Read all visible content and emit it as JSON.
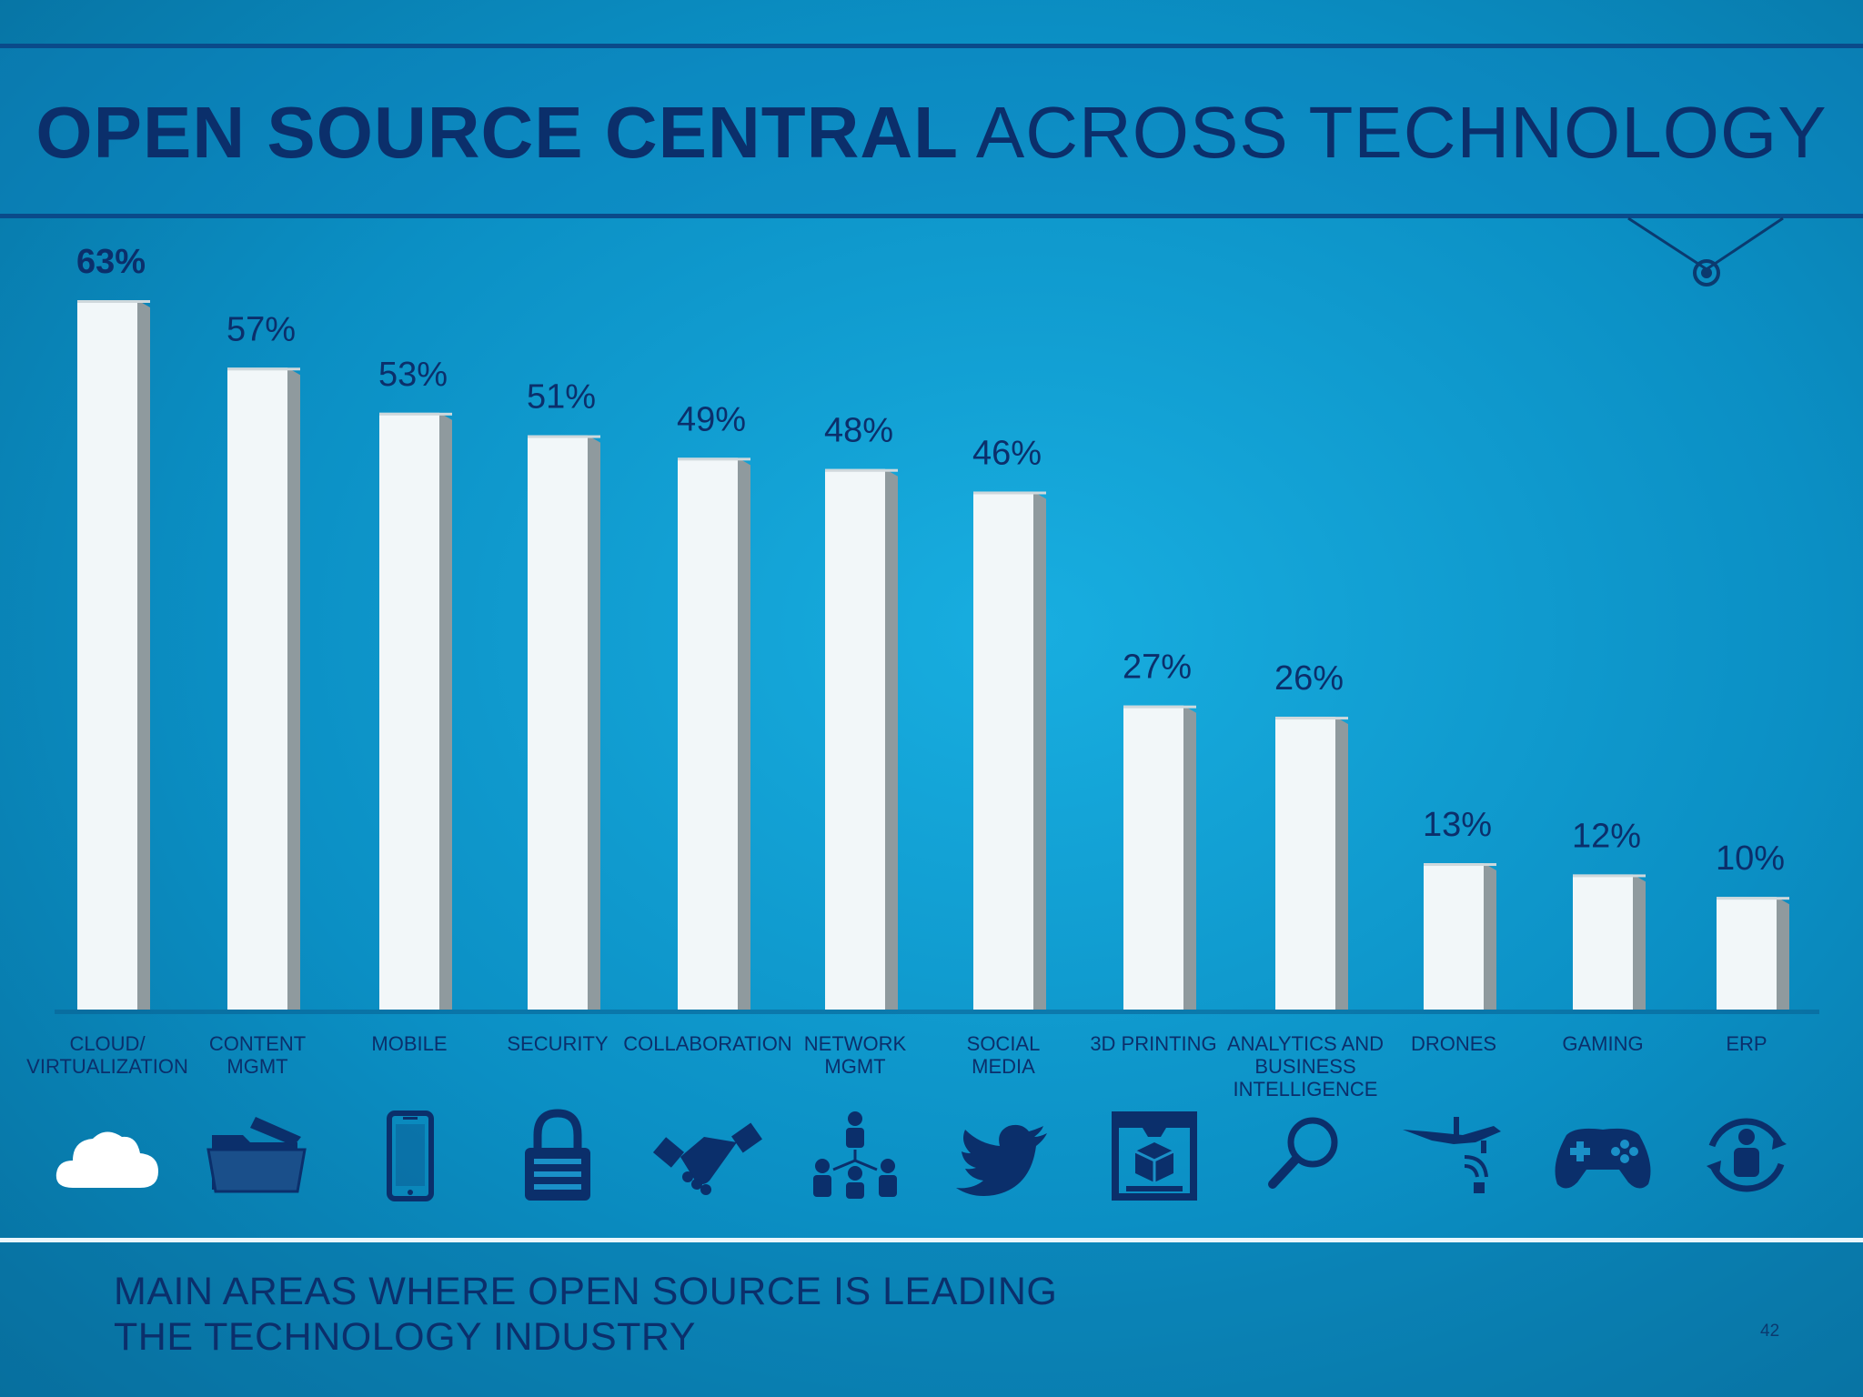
{
  "title": {
    "bold": "OPEN SOURCE CENTRAL",
    "light": "ACROSS TECHNOLOGY"
  },
  "footer": {
    "line1": "MAIN AREAS WHERE OPEN SOURCE IS LEADING",
    "line2": "THE TECHNOLOGY INDUSTRY"
  },
  "page_number": "42",
  "colors": {
    "title": "#0b2f6b",
    "bar": "#f2f7f9",
    "bar_side": "#8f9a9e",
    "background": "#0b8fc4"
  },
  "chart_data": {
    "type": "bar",
    "categories": [
      [
        "CLOUD/",
        "VIRTUALIZATION"
      ],
      [
        "CONTENT",
        "MGMT"
      ],
      [
        "MOBILE"
      ],
      [
        "SECURITY"
      ],
      [
        "COLLABORATION"
      ],
      [
        "NETWORK",
        "MGMT"
      ],
      [
        "SOCIAL",
        "MEDIA"
      ],
      [
        "3D PRINTING"
      ],
      [
        "ANALYTICS AND",
        "BUSINESS",
        "INTELLIGENCE"
      ],
      [
        "DRONES"
      ],
      [
        "GAMING"
      ],
      [
        "ERP"
      ]
    ],
    "values": [
      63,
      57,
      53,
      51,
      49,
      48,
      46,
      27,
      26,
      13,
      12,
      10
    ],
    "value_labels": [
      "63%",
      "57%",
      "53%",
      "51%",
      "49%",
      "48%",
      "46%",
      "27%",
      "26%",
      "13%",
      "12%",
      "10%"
    ],
    "icons": [
      "cloud-icon",
      "folder-icon",
      "mobile-phone-icon",
      "padlock-icon",
      "handshake-icon",
      "network-people-icon",
      "twitter-bird-icon",
      "3d-printer-icon",
      "magnifier-icon",
      "drone-icon",
      "gamepad-icon",
      "erp-person-cycle-icon"
    ],
    "ylim": [
      0,
      63
    ]
  }
}
